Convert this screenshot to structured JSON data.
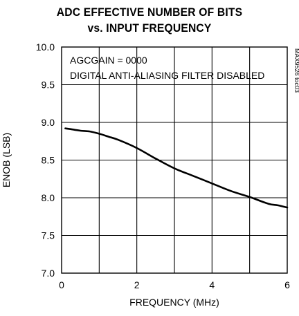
{
  "chart_data": {
    "type": "line",
    "title": [
      "ADC EFFECTIVE NUMBER OF BITS",
      "vs. INPUT FREQUENCY"
    ],
    "xlabel": "FREQUENCY (MHz)",
    "ylabel": "ENOB (LSB)",
    "xlim": [
      0,
      6
    ],
    "ylim": [
      7.0,
      10.0
    ],
    "xticks": [
      0,
      2,
      4,
      6
    ],
    "xtick_labels": [
      "0",
      "2",
      "4",
      "6"
    ],
    "yticks": [
      7.0,
      7.5,
      8.0,
      8.5,
      9.0,
      9.5,
      10.0
    ],
    "ytick_labels": [
      "7.0",
      "7.5",
      "8.0",
      "8.5",
      "9.0",
      "9.5",
      "10.0"
    ],
    "grid": true,
    "annotations": [
      "AGCGAIN = 0000",
      "DIGITAL ANTI-ALIASING FILTER DISABLED"
    ],
    "figure_id": "MAX9526 toc03",
    "series": [
      {
        "x": [
          0.1,
          0.25,
          0.5,
          0.75,
          1.0,
          1.25,
          1.5,
          2.0,
          2.5,
          3.0,
          3.5,
          4.0,
          4.5,
          5.0,
          5.5,
          5.75,
          6.0
        ],
        "y": [
          8.92,
          8.91,
          8.89,
          8.88,
          8.85,
          8.81,
          8.77,
          8.66,
          8.52,
          8.39,
          8.29,
          8.19,
          8.09,
          8.01,
          7.92,
          7.9,
          7.87
        ]
      }
    ]
  }
}
